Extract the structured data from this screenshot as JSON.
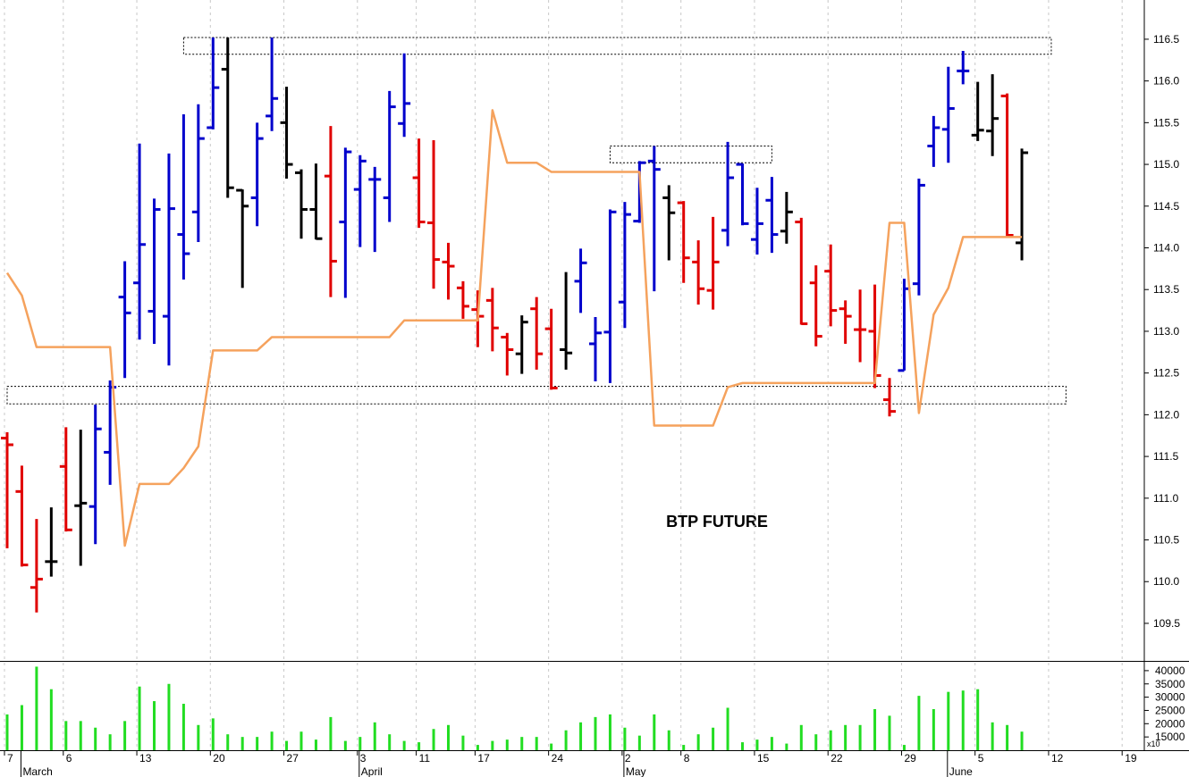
{
  "chart_data": [
    {
      "type": "ohlc",
      "title": "BTP FUTURE",
      "open": [
        111.72,
        111.08,
        109.93,
        110.24,
        111.38,
        110.91,
        110.9,
        111.55,
        113.41,
        113.58,
        113.24,
        113.18,
        114.16,
        114.43,
        115.44,
        116.14,
        114.69,
        114.6,
        115.58,
        115.5,
        114.9,
        114.46,
        114.86,
        114.31,
        114.7,
        114.82,
        114.6,
        115.49,
        114.84,
        114.3,
        113.83,
        113.52,
        113.26,
        113.37,
        112.93,
        112.73,
        113.27,
        113.03,
        112.78,
        113.6,
        112.85,
        112.99,
        113.35,
        114.32,
        115.04,
        114.6,
        114.54,
        113.83,
        113.49,
        114.21,
        115.0,
        114.1,
        114.57,
        114.2,
        114.31,
        113.58,
        113.72,
        113.27,
        113.02,
        113.0,
        112.18,
        112.53,
        113.57,
        115.22,
        115.42,
        116.12,
        115.35,
        115.4,
        115.82,
        114.06,
        null,
        null,
        null,
        null,
        null,
        null,
        null
      ],
      "high": [
        111.79,
        111.39,
        110.75,
        110.89,
        111.85,
        111.82,
        112.12,
        112.41,
        113.84,
        115.25,
        114.59,
        115.13,
        115.6,
        115.72,
        116.52,
        116.52,
        114.7,
        115.5,
        116.52,
        115.93,
        114.94,
        115.01,
        115.46,
        115.2,
        115.11,
        114.97,
        115.88,
        116.33,
        115.31,
        115.29,
        114.06,
        113.6,
        113.49,
        113.52,
        112.98,
        113.19,
        113.41,
        113.27,
        113.71,
        113.99,
        113.17,
        114.46,
        114.55,
        115.04,
        115.22,
        114.75,
        114.56,
        114.09,
        114.37,
        115.27,
        115.01,
        114.72,
        114.85,
        114.67,
        114.36,
        113.79,
        114.04,
        113.37,
        113.5,
        113.56,
        112.44,
        113.63,
        114.83,
        115.58,
        116.17,
        116.36,
        115.99,
        116.08,
        115.85,
        115.19,
        null,
        null,
        null,
        null,
        null,
        null,
        null
      ],
      "low": [
        110.4,
        110.18,
        109.63,
        110.06,
        110.6,
        110.19,
        110.45,
        111.16,
        112.44,
        112.9,
        112.85,
        112.59,
        113.62,
        114.07,
        115.42,
        114.6,
        113.52,
        114.26,
        115.4,
        114.83,
        114.11,
        114.1,
        113.41,
        113.4,
        114.01,
        113.95,
        114.31,
        115.33,
        114.24,
        113.51,
        113.38,
        113.15,
        112.81,
        112.76,
        112.47,
        112.49,
        112.54,
        112.3,
        112.54,
        113.22,
        112.4,
        112.38,
        113.04,
        114.3,
        113.48,
        113.85,
        113.58,
        113.32,
        113.26,
        114.02,
        114.27,
        113.92,
        113.94,
        114.05,
        113.08,
        112.82,
        113.06,
        112.85,
        112.63,
        112.32,
        111.98,
        112.53,
        113.43,
        114.97,
        115.02,
        115.96,
        115.28,
        115.1,
        114.14,
        113.85,
        null,
        null,
        null,
        null,
        null,
        null,
        null
      ],
      "close": [
        111.64,
        110.2,
        110.03,
        110.24,
        110.62,
        110.94,
        111.83,
        112.33,
        113.22,
        114.04,
        114.46,
        114.47,
        113.93,
        115.31,
        115.92,
        114.72,
        114.5,
        115.31,
        115.79,
        115.0,
        114.46,
        114.11,
        113.84,
        115.15,
        115.04,
        114.82,
        115.69,
        115.73,
        114.31,
        113.86,
        113.78,
        113.3,
        113.18,
        113.04,
        112.78,
        113.11,
        112.73,
        112.32,
        112.74,
        113.82,
        112.98,
        114.43,
        114.4,
        115.02,
        114.94,
        114.42,
        113.88,
        113.51,
        113.83,
        114.84,
        114.29,
        114.29,
        114.16,
        114.43,
        113.09,
        112.94,
        113.25,
        113.18,
        113.02,
        112.47,
        112.04,
        113.51,
        114.75,
        115.44,
        115.67,
        116.12,
        115.41,
        115.55,
        114.15,
        115.14,
        null,
        null,
        null,
        null,
        null,
        null,
        null
      ],
      "colors": [
        "#e00000",
        "#e00000",
        "#e00000",
        "#000000",
        "#e00000",
        "#000000",
        "#0000cc",
        "#0000cc",
        "#0000cc",
        "#0000cc",
        "#0000cc",
        "#0000cc",
        "#0000cc",
        "#0000cc",
        "#0000cc",
        "#000000",
        "#000000",
        "#0000cc",
        "#0000cc",
        "#000000",
        "#000000",
        "#000000",
        "#e00000",
        "#0000cc",
        "#0000cc",
        "#0000cc",
        "#0000cc",
        "#0000cc",
        "#e00000",
        "#e00000",
        "#e00000",
        "#e00000",
        "#e00000",
        "#e00000",
        "#e00000",
        "#000000",
        "#e00000",
        "#e00000",
        "#000000",
        "#0000cc",
        "#0000cc",
        "#0000cc",
        "#0000cc",
        "#0000cc",
        "#0000cc",
        "#000000",
        "#e00000",
        "#e00000",
        "#e00000",
        "#0000cc",
        "#0000cc",
        "#0000cc",
        "#0000cc",
        "#000000",
        "#e00000",
        "#e00000",
        "#e00000",
        "#e00000",
        "#e00000",
        "#e00000",
        "#e00000",
        "#0000cc",
        "#0000cc",
        "#0000cc",
        "#0000cc",
        "#0000cc",
        "#000000",
        "#000000",
        "#e00000",
        "#000000",
        null,
        null,
        null,
        null,
        null,
        null,
        null
      ],
      "line": {
        "color": "#f5a25d",
        "values": [
          113.7,
          113.43,
          112.81,
          112.81,
          112.81,
          112.81,
          112.81,
          112.81,
          110.43,
          111.17,
          111.17,
          111.17,
          111.36,
          111.62,
          112.77,
          112.77,
          112.77,
          112.77,
          112.93,
          112.93,
          112.93,
          112.93,
          112.93,
          112.93,
          112.93,
          112.93,
          112.93,
          113.13,
          113.13,
          113.13,
          113.13,
          113.13,
          113.13,
          115.65,
          115.02,
          115.02,
          115.02,
          114.91,
          114.91,
          114.91,
          114.91,
          114.91,
          114.91,
          114.91,
          111.87,
          111.87,
          111.87,
          111.87,
          111.87,
          112.33,
          112.38,
          112.38,
          112.38,
          112.38,
          112.38,
          112.38,
          112.38,
          112.38,
          112.38,
          112.38,
          114.3,
          114.3,
          112.02,
          113.2,
          113.52,
          114.13,
          114.13,
          114.13,
          114.13,
          114.13,
          null,
          null,
          null,
          null,
          null,
          null,
          null
        ]
      },
      "zones": [
        {
          "ylim": [
            116.32,
            116.52
          ],
          "xlim": [
            12,
            71
          ]
        },
        {
          "ylim": [
            115.02,
            115.22
          ],
          "xlim": [
            41,
            52
          ]
        },
        {
          "ylim": [
            112.13,
            112.34
          ],
          "xlim": [
            0,
            72
          ]
        }
      ],
      "ylim": [
        109.05,
        116.97
      ],
      "yticks": [
        109.5,
        {
          "value": 110,
          "label": "110.0"
        },
        110.5,
        {
          "value": 111,
          "label": "111.0"
        },
        111.5,
        {
          "value": 112,
          "label": "112.0"
        },
        112.5,
        {
          "value": 113,
          "label": "113.0"
        },
        113.5,
        {
          "value": 114,
          "label": "114.0"
        },
        114.5,
        {
          "value": 115,
          "label": "115.0"
        },
        115.5,
        {
          "value": 116,
          "label": "116.0"
        },
        116.5
      ]
    },
    {
      "type": "bar",
      "color": "#22dd22",
      "scale_label": "x10",
      "values": [
        23500,
        27000,
        41500,
        33000,
        21000,
        21000,
        18500,
        16000,
        21000,
        34000,
        28500,
        35000,
        27500,
        19500,
        22000,
        16000,
        15000,
        15000,
        17000,
        13500,
        17000,
        14000,
        22500,
        13500,
        15000,
        20500,
        16000,
        13500,
        13000,
        18000,
        19500,
        15500,
        12000,
        13500,
        14000,
        15000,
        15000,
        12500,
        17500,
        20500,
        22500,
        23500,
        18500,
        15500,
        23500,
        17500,
        12000,
        16000,
        18500,
        26000,
        13000,
        14000,
        15000,
        12500,
        19500,
        16000,
        17500,
        19500,
        19500,
        25500,
        23000,
        12000,
        30500,
        25500,
        32000,
        32500,
        33000,
        20500,
        19500,
        17000,
        null,
        null,
        null,
        null,
        null,
        null,
        null
      ],
      "ylim": [
        10000,
        43000
      ],
      "yticks": [
        15000,
        20000,
        25000,
        30000,
        35000,
        40000
      ],
      "categories": [
        "7",
        null,
        null,
        null,
        "6",
        null,
        null,
        null,
        null,
        "13",
        null,
        null,
        null,
        null,
        "20",
        null,
        null,
        null,
        null,
        "27",
        null,
        null,
        null,
        null,
        "3",
        null,
        null,
        null,
        "11",
        null,
        null,
        null,
        "17",
        null,
        null,
        null,
        null,
        "24",
        null,
        null,
        null,
        null,
        "2",
        null,
        null,
        null,
        "8",
        null,
        null,
        null,
        null,
        "15",
        null,
        null,
        null,
        null,
        "22",
        null,
        null,
        null,
        null,
        "29",
        null,
        null,
        null,
        null,
        "5",
        null,
        null,
        null,
        null,
        "12",
        null,
        null,
        null,
        null,
        "19"
      ],
      "months": [
        null,
        "March",
        null,
        null,
        null,
        null,
        null,
        null,
        null,
        null,
        null,
        null,
        null,
        null,
        null,
        null,
        null,
        null,
        null,
        null,
        null,
        null,
        null,
        null,
        "April",
        null,
        null,
        null,
        null,
        null,
        null,
        null,
        null,
        null,
        null,
        null,
        null,
        null,
        null,
        null,
        null,
        null,
        "May",
        null,
        null,
        null,
        null,
        null,
        null,
        null,
        null,
        null,
        null,
        null,
        null,
        null,
        null,
        null,
        null,
        null,
        null,
        null,
        null,
        null,
        "June",
        null,
        null,
        null,
        null,
        null,
        null,
        null,
        null,
        null,
        null,
        null,
        null
      ],
      "grid": true
    }
  ]
}
